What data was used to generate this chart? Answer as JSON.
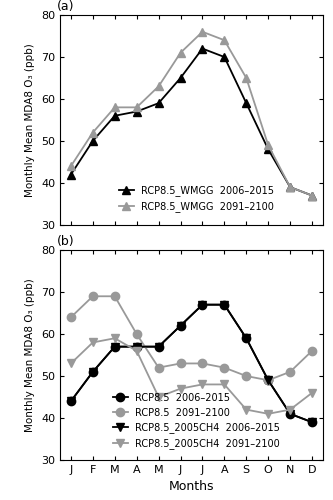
{
  "months_labels": [
    "J",
    "F",
    "M",
    "A",
    "M",
    "J",
    "J",
    "A",
    "S",
    "O",
    "N",
    "D"
  ],
  "panel_a": {
    "wmgg_2006": [
      42,
      50,
      56,
      57,
      59,
      65,
      72,
      70,
      59,
      48,
      39,
      37
    ],
    "wmgg_2091": [
      44,
      52,
      58,
      58,
      63,
      71,
      76,
      74,
      65,
      49,
      39,
      37
    ]
  },
  "panel_b": {
    "rcp85_2006": [
      44,
      51,
      57,
      57,
      57,
      62,
      67,
      67,
      59,
      49,
      41,
      39
    ],
    "rcp85_2091": [
      64,
      69,
      69,
      60,
      52,
      53,
      53,
      52,
      50,
      49,
      51,
      56
    ],
    "ch4_2006": [
      44,
      51,
      57,
      57,
      57,
      62,
      67,
      67,
      59,
      49,
      41,
      39
    ],
    "ch4_2091": [
      53,
      58,
      59,
      56,
      45,
      47,
      48,
      48,
      42,
      41,
      42,
      46
    ]
  },
  "ylim": [
    30,
    80
  ],
  "yticks": [
    30,
    40,
    50,
    60,
    70,
    80
  ],
  "ylabel": "Monthly Mean MDA8 O₃ (ppb)",
  "xlabel": "Months",
  "color_black": "#000000",
  "color_gray": "#999999",
  "legend_a": [
    "RCP8.5_WMGG  2006–2015",
    "RCP8.5_WMGG  2091–2100"
  ],
  "legend_b": [
    "RCP8.5  2006–2015",
    "RCP8.5  2091–2100",
    "RCP8.5_2005CH4  2006–2015",
    "RCP8.5_2005CH4  2091–2100"
  ]
}
